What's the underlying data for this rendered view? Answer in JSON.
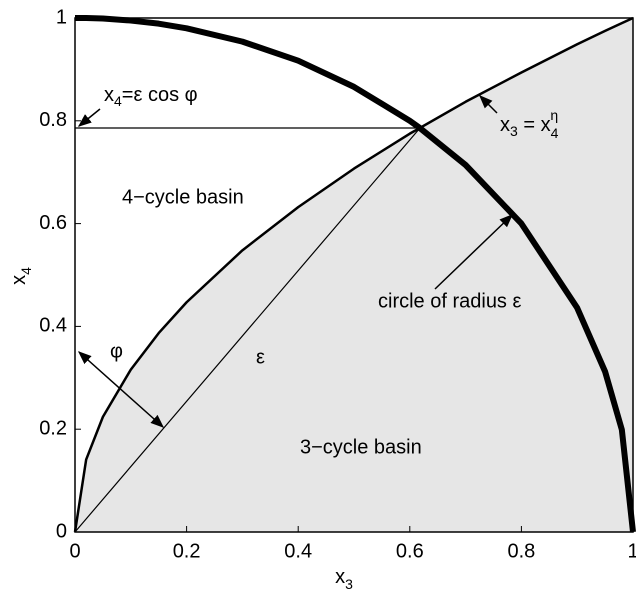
{
  "chart_data": {
    "type": "line",
    "x": [
      0,
      0.02,
      0.05,
      0.1,
      0.15,
      0.2,
      0.3,
      0.4,
      0.5,
      0.6,
      0.618,
      0.7,
      0.8,
      0.9,
      0.95,
      0.98,
      1
    ],
    "series": [
      {
        "color": "#000000",
        "fill": "#e6e6e6",
        "values": [
          0,
          0.141,
          0.224,
          0.316,
          0.387,
          0.447,
          0.548,
          0.632,
          0.707,
          0.775,
          0.786,
          0.837,
          0.894,
          0.949,
          0.975,
          0.99,
          1
        ]
      },
      {
        "color": "#000000",
        "values": [
          1,
          1,
          0.999,
          0.995,
          0.989,
          0.98,
          0.954,
          0.917,
          0.866,
          0.8,
          0.786,
          0.714,
          0.6,
          0.436,
          0.312,
          0.199,
          0
        ]
      }
    ],
    "xlim": [
      0,
      1
    ],
    "ylim": [
      0,
      1
    ],
    "xticks": [
      0,
      0.2,
      0.4,
      0.6,
      0.8,
      1
    ],
    "yticks": [
      0,
      0.2,
      0.4,
      0.6,
      0.8,
      1
    ],
    "x_label": [
      "x",
      "3"
    ],
    "y_label": [
      "x",
      "4"
    ],
    "annotations": {
      "cos_label": [
        "x",
        "4",
        "=ε cos φ"
      ],
      "power_label": [
        "x",
        "3",
        " = x",
        "4",
        "η"
      ],
      "four_cycle": "4−cycle basin",
      "three_cycle": "3−cycle basin",
      "circle": "circle of radius ε",
      "epsilon": "ε",
      "phi": "φ"
    }
  }
}
